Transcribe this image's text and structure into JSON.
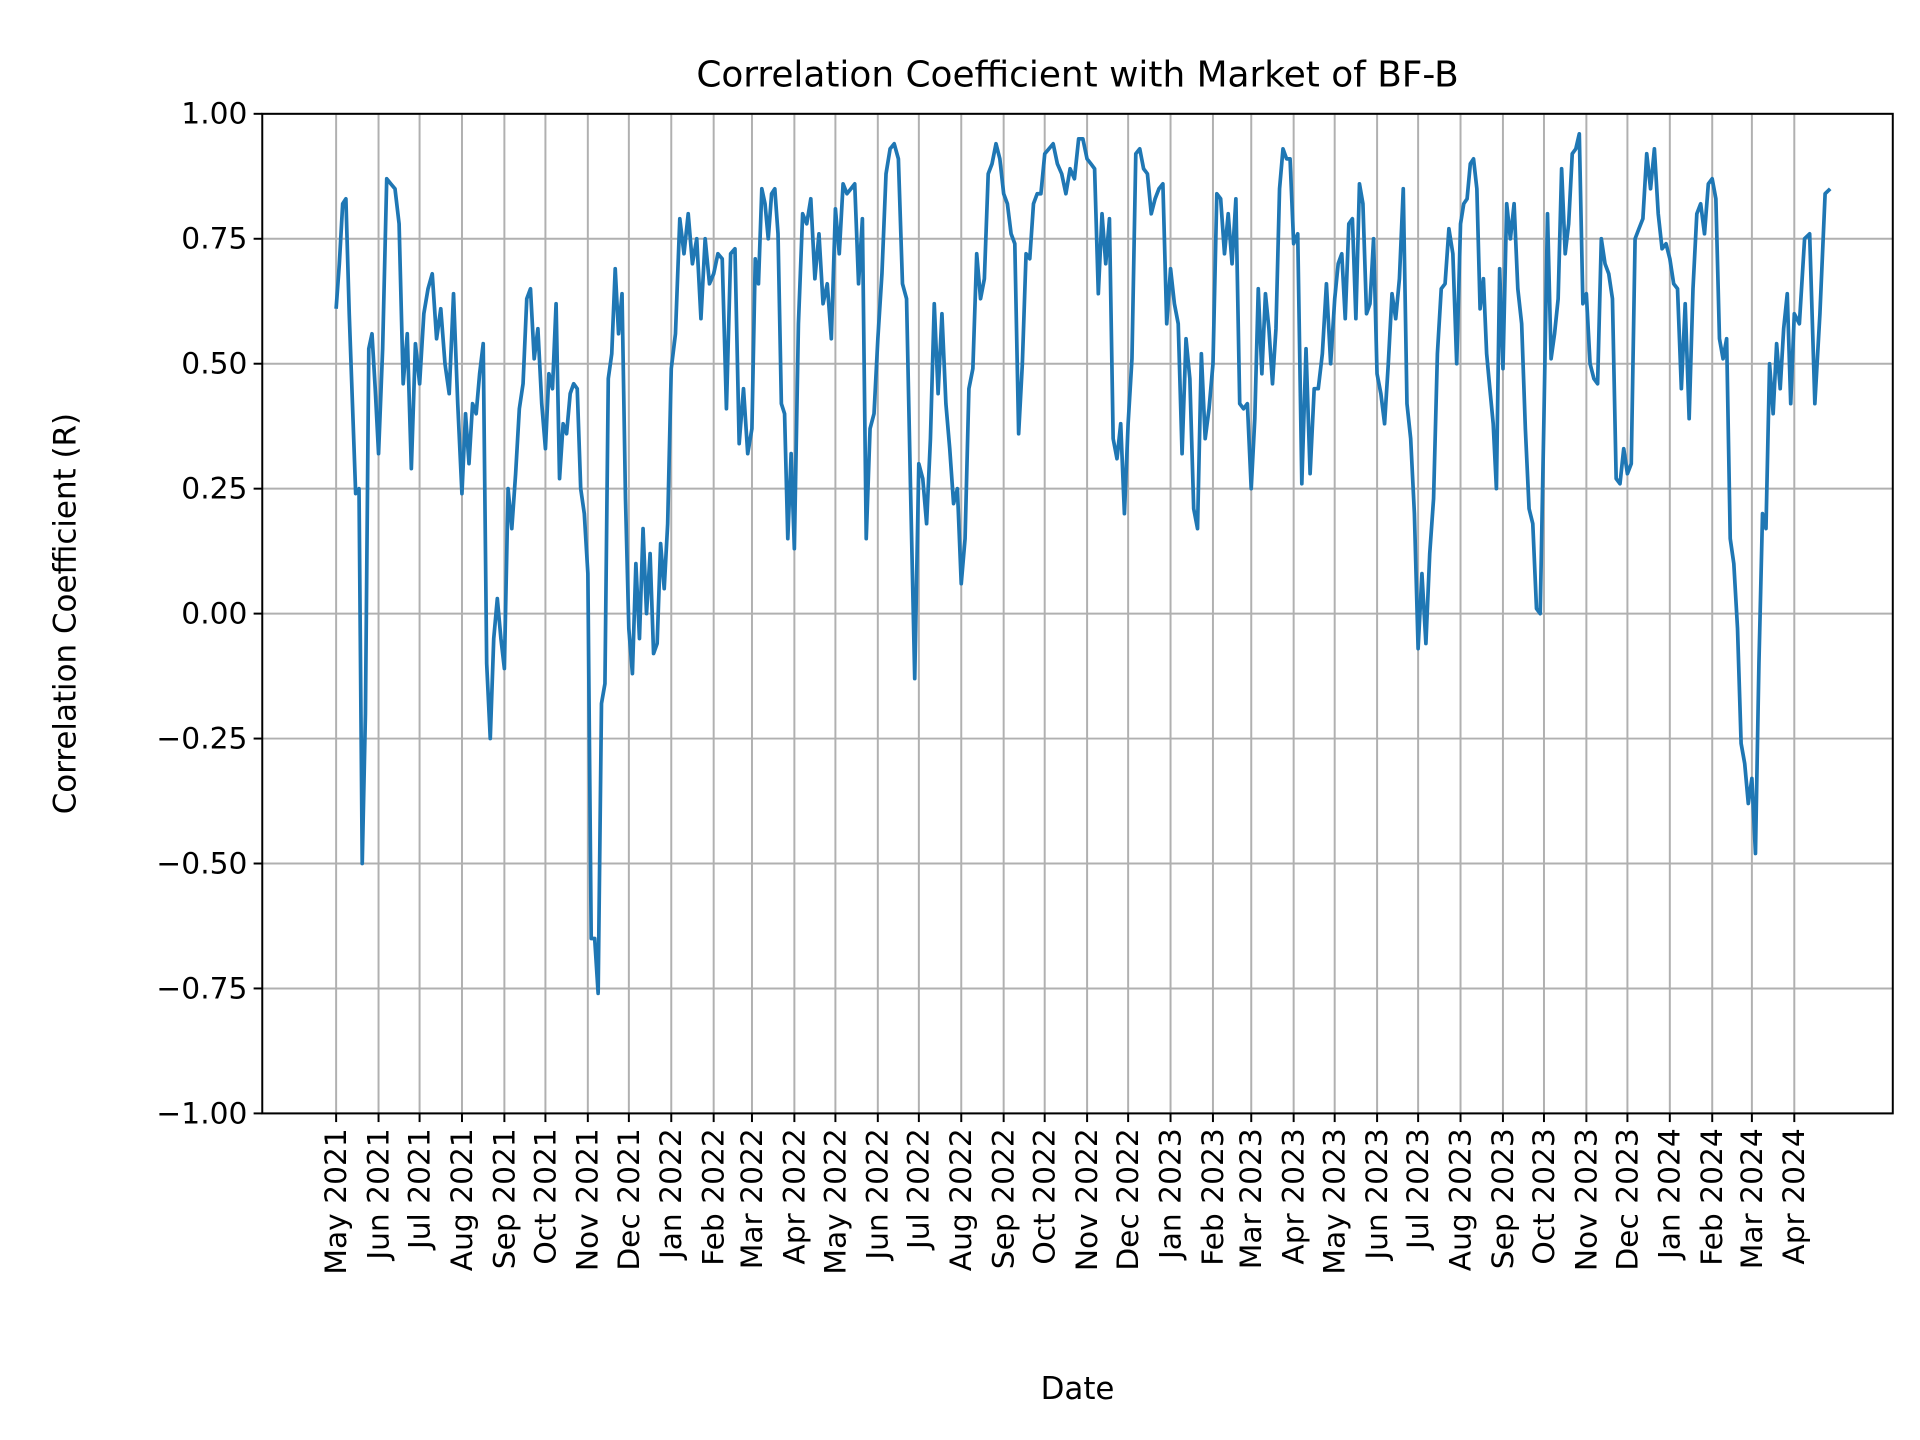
{
  "chart_data": {
    "type": "line",
    "title": "Correlation Coefficient with Market of BF-B",
    "xlabel": "Date",
    "ylabel": "Correlation Coefficient (R)",
    "ylim": [
      -1.0,
      1.0
    ],
    "xlim": [
      "2021-03-08",
      "2024-06-12"
    ],
    "grid": true,
    "color": "#1f77b4",
    "grid_color": "#b0b0b0",
    "yticks": [
      -1.0,
      -0.75,
      -0.5,
      -0.25,
      0.0,
      0.25,
      0.5,
      0.75,
      1.0
    ],
    "ytick_labels": [
      "−1.00",
      "−0.75",
      "−0.50",
      "−0.25",
      "0.00",
      "0.25",
      "0.50",
      "0.75",
      "1.00"
    ],
    "xticks": [
      {
        "date": "2021-05-01",
        "label": "May 2021"
      },
      {
        "date": "2021-06-01",
        "label": "Jun 2021"
      },
      {
        "date": "2021-07-01",
        "label": "Jul 2021"
      },
      {
        "date": "2021-08-01",
        "label": "Aug 2021"
      },
      {
        "date": "2021-09-01",
        "label": "Sep 2021"
      },
      {
        "date": "2021-10-01",
        "label": "Oct 2021"
      },
      {
        "date": "2021-11-01",
        "label": "Nov 2021"
      },
      {
        "date": "2021-12-01",
        "label": "Dec 2021"
      },
      {
        "date": "2022-01-01",
        "label": "Jan 2022"
      },
      {
        "date": "2022-02-01",
        "label": "Feb 2022"
      },
      {
        "date": "2022-03-01",
        "label": "Mar 2022"
      },
      {
        "date": "2022-04-01",
        "label": "Apr 2022"
      },
      {
        "date": "2022-05-01",
        "label": "May 2022"
      },
      {
        "date": "2022-06-01",
        "label": "Jun 2022"
      },
      {
        "date": "2022-07-01",
        "label": "Jul 2022"
      },
      {
        "date": "2022-08-01",
        "label": "Aug 2022"
      },
      {
        "date": "2022-09-01",
        "label": "Sep 2022"
      },
      {
        "date": "2022-10-01",
        "label": "Oct 2022"
      },
      {
        "date": "2022-11-01",
        "label": "Nov 2022"
      },
      {
        "date": "2022-12-01",
        "label": "Dec 2022"
      },
      {
        "date": "2023-01-01",
        "label": "Jan 2023"
      },
      {
        "date": "2023-02-01",
        "label": "Feb 2023"
      },
      {
        "date": "2023-03-01",
        "label": "Mar 2023"
      },
      {
        "date": "2023-04-01",
        "label": "Apr 2023"
      },
      {
        "date": "2023-05-01",
        "label": "May 2023"
      },
      {
        "date": "2023-06-01",
        "label": "Jun 2023"
      },
      {
        "date": "2023-07-01",
        "label": "Jul 2023"
      },
      {
        "date": "2023-08-01",
        "label": "Aug 2023"
      },
      {
        "date": "2023-09-01",
        "label": "Sep 2023"
      },
      {
        "date": "2023-10-01",
        "label": "Oct 2023"
      },
      {
        "date": "2023-11-01",
        "label": "Nov 2023"
      },
      {
        "date": "2023-12-01",
        "label": "Dec 2023"
      },
      {
        "date": "2024-01-01",
        "label": "Jan 2024"
      },
      {
        "date": "2024-02-01",
        "label": "Feb 2024"
      },
      {
        "date": "2024-03-01",
        "label": "Mar 2024"
      },
      {
        "date": "2024-04-01",
        "label": "Apr 2024"
      }
    ],
    "series_by_month": [
      {
        "month": "2021-05",
        "values": [
          0.61,
          0.7,
          0.82,
          0.83,
          0.6,
          0.42,
          0.24,
          0.25,
          -0.5,
          -0.2,
          0.53,
          0.56,
          0.45
        ]
      },
      {
        "month": "2021-06",
        "values": [
          0.32,
          0.53,
          0.87,
          0.86,
          0.85,
          0.78,
          0.46,
          0.56,
          0.29,
          0.54
        ]
      },
      {
        "month": "2021-07",
        "values": [
          0.46,
          0.6,
          0.65,
          0.68,
          0.55,
          0.61,
          0.5,
          0.44,
          0.64,
          0.42
        ]
      },
      {
        "month": "2021-08",
        "values": [
          0.24,
          0.4,
          0.3,
          0.42,
          0.4,
          0.48,
          0.54,
          -0.1,
          -0.25,
          -0.05,
          0.03,
          -0.05
        ]
      },
      {
        "month": "2021-09",
        "values": [
          -0.11,
          0.25,
          0.17,
          0.28,
          0.41,
          0.46,
          0.63,
          0.65,
          0.51,
          0.57,
          0.42
        ]
      },
      {
        "month": "2021-10",
        "values": [
          0.33,
          0.48,
          0.45,
          0.62,
          0.27,
          0.38,
          0.36,
          0.44,
          0.46,
          0.45,
          0.25,
          0.2
        ]
      },
      {
        "month": "2021-11",
        "values": [
          0.08,
          -0.65,
          -0.65,
          -0.76,
          -0.18,
          -0.14,
          0.47,
          0.52,
          0.69,
          0.56,
          0.64,
          0.23
        ]
      },
      {
        "month": "2021-12",
        "values": [
          -0.03,
          -0.12,
          0.1,
          -0.05,
          0.17,
          0.0,
          0.12,
          -0.08,
          -0.06,
          0.14,
          0.05,
          0.18
        ]
      },
      {
        "month": "2022-01",
        "values": [
          0.49,
          0.56,
          0.79,
          0.72,
          0.8,
          0.7,
          0.75,
          0.59,
          0.75,
          0.66
        ]
      },
      {
        "month": "2022-02",
        "values": [
          0.68,
          0.72,
          0.71,
          0.41,
          0.72,
          0.73,
          0.34,
          0.45,
          0.32
        ]
      },
      {
        "month": "2022-03",
        "values": [
          0.37,
          0.71,
          0.66,
          0.85,
          0.82,
          0.75,
          0.84,
          0.85,
          0.76,
          0.42,
          0.4,
          0.15,
          0.32
        ]
      },
      {
        "month": "2022-04",
        "values": [
          0.13,
          0.58,
          0.8,
          0.78,
          0.83,
          0.67,
          0.76,
          0.62,
          0.66,
          0.55
        ]
      },
      {
        "month": "2022-05",
        "values": [
          0.81,
          0.72,
          0.86,
          0.84,
          0.85,
          0.86,
          0.66,
          0.79,
          0.15,
          0.37,
          0.4
        ]
      },
      {
        "month": "2022-06",
        "values": [
          0.55,
          0.68,
          0.88,
          0.93,
          0.94,
          0.91,
          0.66,
          0.63,
          0.24,
          -0.13
        ]
      },
      {
        "month": "2022-07",
        "values": [
          0.3,
          0.27,
          0.18,
          0.35,
          0.62,
          0.44,
          0.6,
          0.42,
          0.33,
          0.22,
          0.25
        ]
      },
      {
        "month": "2022-08",
        "values": [
          0.06,
          0.15,
          0.45,
          0.49,
          0.72,
          0.63,
          0.67,
          0.88,
          0.9,
          0.94,
          0.91
        ]
      },
      {
        "month": "2022-09",
        "values": [
          0.84,
          0.82,
          0.76,
          0.74,
          0.36,
          0.5,
          0.72,
          0.71,
          0.82,
          0.84,
          0.84
        ]
      },
      {
        "month": "2022-10",
        "values": [
          0.92,
          0.93,
          0.94,
          0.9,
          0.88,
          0.84,
          0.89,
          0.87,
          0.95,
          0.95
        ]
      },
      {
        "month": "2022-11",
        "values": [
          0.91,
          0.9,
          0.89,
          0.64,
          0.8,
          0.7,
          0.79,
          0.35,
          0.31,
          0.38,
          0.2
        ]
      },
      {
        "month": "2022-12",
        "values": [
          0.38,
          0.51,
          0.92,
          0.93,
          0.89,
          0.88,
          0.8,
          0.83,
          0.85,
          0.86,
          0.58
        ]
      },
      {
        "month": "2023-01",
        "values": [
          0.69,
          0.62,
          0.58,
          0.32,
          0.55,
          0.47,
          0.21,
          0.17,
          0.52,
          0.35,
          0.41
        ]
      },
      {
        "month": "2023-02",
        "values": [
          0.5,
          0.84,
          0.83,
          0.72,
          0.8,
          0.7,
          0.83,
          0.42,
          0.41,
          0.42
        ]
      },
      {
        "month": "2023-03",
        "values": [
          0.25,
          0.39,
          0.65,
          0.48,
          0.64,
          0.57,
          0.46,
          0.57,
          0.85,
          0.93,
          0.91,
          0.91
        ]
      },
      {
        "month": "2023-04",
        "values": [
          0.74,
          0.76,
          0.26,
          0.53,
          0.28,
          0.45,
          0.45,
          0.52,
          0.66,
          0.5
        ]
      },
      {
        "month": "2023-05",
        "values": [
          0.63,
          0.7,
          0.72,
          0.59,
          0.78,
          0.79,
          0.59,
          0.86,
          0.82,
          0.6,
          0.62,
          0.75
        ]
      },
      {
        "month": "2023-06",
        "values": [
          0.48,
          0.44,
          0.38,
          0.5,
          0.64,
          0.59,
          0.67,
          0.85,
          0.42,
          0.35,
          0.2
        ]
      },
      {
        "month": "2023-07",
        "values": [
          -0.07,
          0.08,
          -0.06,
          0.12,
          0.23,
          0.52,
          0.65,
          0.66,
          0.77,
          0.72,
          0.5
        ]
      },
      {
        "month": "2023-08",
        "values": [
          0.78,
          0.82,
          0.83,
          0.9,
          0.91,
          0.85,
          0.61,
          0.67,
          0.52,
          0.45,
          0.38,
          0.25,
          0.69
        ]
      },
      {
        "month": "2023-09",
        "values": [
          0.49,
          0.82,
          0.75,
          0.82,
          0.65,
          0.58,
          0.37,
          0.21,
          0.18,
          0.01,
          0.0
        ]
      },
      {
        "month": "2023-10",
        "values": [
          0.39,
          0.8,
          0.51,
          0.56,
          0.63,
          0.89,
          0.72,
          0.78,
          0.92,
          0.93,
          0.96,
          0.62
        ]
      },
      {
        "month": "2023-11",
        "values": [
          0.64,
          0.5,
          0.47,
          0.46,
          0.75,
          0.7,
          0.68,
          0.63,
          0.27,
          0.26,
          0.33
        ]
      },
      {
        "month": "2023-12",
        "values": [
          0.28,
          0.3,
          0.75,
          0.77,
          0.79,
          0.92,
          0.85,
          0.93,
          0.8,
          0.73,
          0.74
        ]
      },
      {
        "month": "2024-01",
        "values": [
          0.71,
          0.66,
          0.65,
          0.45,
          0.62,
          0.39,
          0.65,
          0.8,
          0.82,
          0.76,
          0.86
        ]
      },
      {
        "month": "2024-02",
        "values": [
          0.87,
          0.83,
          0.55,
          0.51,
          0.55,
          0.15,
          0.1,
          -0.03,
          -0.26,
          -0.3,
          -0.38
        ]
      },
      {
        "month": "2024-03",
        "values": [
          -0.33,
          -0.48,
          -0.1,
          0.2,
          0.17,
          0.5,
          0.4,
          0.54,
          0.45,
          0.57,
          0.64,
          0.42
        ]
      },
      {
        "month": "2024-04",
        "values": [
          0.6,
          0.58,
          0.75,
          0.76,
          0.42,
          0.6,
          0.84,
          0.85
        ]
      }
    ]
  }
}
